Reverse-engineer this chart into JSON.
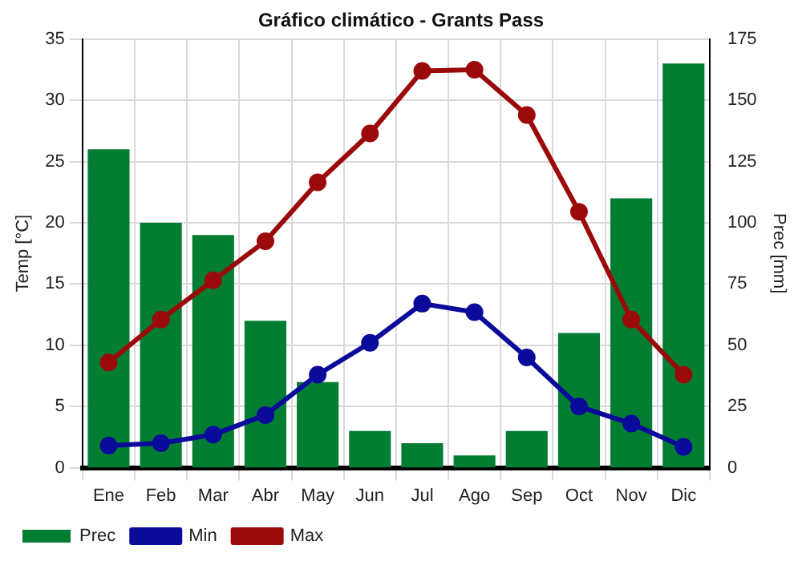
{
  "chart_data": {
    "type": "bar",
    "title": "Gráfico climático - Grants Pass",
    "ylabel": "Temp [°C]",
    "y2label": "Prec [mm]",
    "categories": [
      "Ene",
      "Feb",
      "Mar",
      "Abr",
      "May",
      "Jun",
      "Jul",
      "Ago",
      "Sep",
      "Oct",
      "Nov",
      "Dic"
    ],
    "series": [
      {
        "name": "Prec",
        "axis": "y2",
        "color": "#037d32",
        "values": [
          130,
          100,
          95,
          60,
          35,
          15,
          10,
          5,
          15,
          55,
          110,
          165
        ]
      },
      {
        "name": "Min",
        "type": "line",
        "color": "#0a0a9b",
        "values": [
          1.8,
          2.0,
          2.7,
          4.3,
          7.6,
          10.2,
          13.4,
          12.7,
          9.0,
          5.0,
          3.6,
          1.7
        ]
      },
      {
        "name": "Max",
        "type": "line",
        "color": "#9b0a0a",
        "values": [
          8.6,
          12.1,
          15.3,
          18.5,
          23.3,
          27.3,
          32.4,
          32.5,
          28.8,
          20.9,
          12.1,
          7.6
        ]
      }
    ],
    "ylim": [
      0,
      35
    ],
    "yticks": [
      0,
      5,
      10,
      15,
      20,
      25,
      30,
      35
    ],
    "y2lim": [
      0,
      175
    ],
    "y2ticks": [
      0,
      25,
      50,
      75,
      100,
      125,
      150,
      175
    ],
    "grid": true,
    "legend": "bottom left",
    "marker": "circle",
    "line_style": "solid"
  }
}
